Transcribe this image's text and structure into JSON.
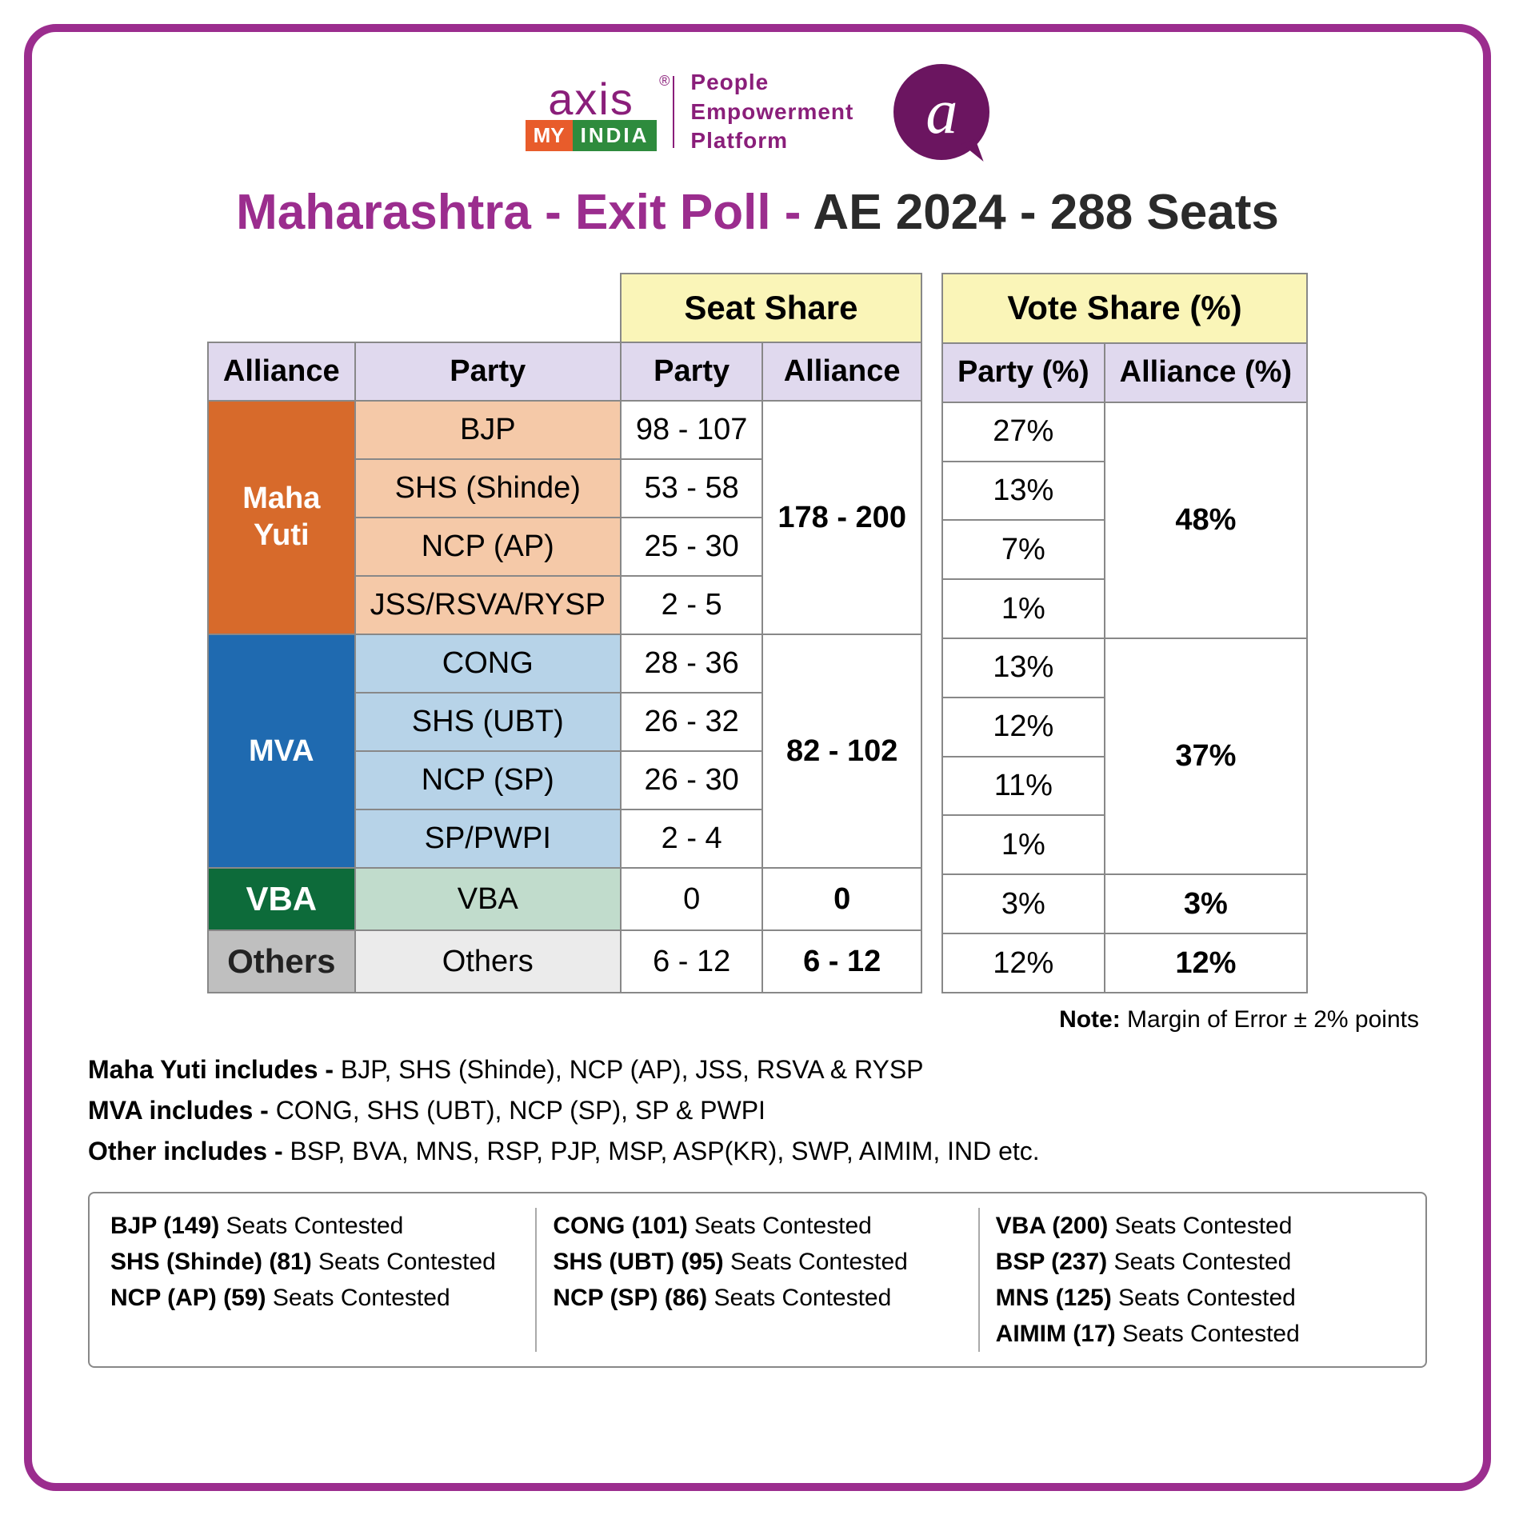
{
  "logo": {
    "axis": "axis",
    "reg": "®",
    "my": "MY",
    "india": "INDIA",
    "tagline1": "People",
    "tagline2": "Empowerment",
    "tagline3": "Platform",
    "bubble": "a"
  },
  "title": {
    "part1": "Maharashtra - Exit Poll - ",
    "part2": "AE 2024 - 288 Seats"
  },
  "headers": {
    "seat_share": "Seat Share",
    "vote_share": "Vote Share (%)",
    "alliance": "Alliance",
    "party": "Party",
    "party_seat": "Party",
    "alliance_seat": "Alliance",
    "party_pct": "Party (%)",
    "alliance_pct": "Alliance (%)"
  },
  "colors": {
    "border": "#9b2d8e",
    "title_accent": "#9b2d8e",
    "super_header_bg": "#faf5b8",
    "sub_header_bg": "#e0d9ee",
    "maha_yuti": "#d76a2b",
    "maha_yuti_party": "#f5c9a8",
    "mva": "#1f6ab0",
    "mva_party": "#b7d3e8",
    "vba": "#0d6b3a",
    "vba_party": "#c1dccc",
    "others": "#bfbfbf",
    "others_party": "#ebebeb",
    "cell_border": "#888888"
  },
  "alliances": [
    {
      "name": "Maha Yuti",
      "alliance_seat": "178 - 200",
      "alliance_vote": "48%",
      "parties": [
        {
          "name": "BJP",
          "seat": "98 - 107",
          "vote": "27%"
        },
        {
          "name": "SHS (Shinde)",
          "seat": "53 - 58",
          "vote": "13%"
        },
        {
          "name": "NCP (AP)",
          "seat": "25 - 30",
          "vote": "7%"
        },
        {
          "name": "JSS/RSVA/RYSP",
          "seat": "2 - 5",
          "vote": "1%"
        }
      ]
    },
    {
      "name": "MVA",
      "alliance_seat": "82 - 102",
      "alliance_vote": "37%",
      "parties": [
        {
          "name": "CONG",
          "seat": "28 - 36",
          "vote": "13%"
        },
        {
          "name": "SHS (UBT)",
          "seat": "26 - 32",
          "vote": "12%"
        },
        {
          "name": "NCP (SP)",
          "seat": "26 - 30",
          "vote": "11%"
        },
        {
          "name": "SP/PWPI",
          "seat": "2 - 4",
          "vote": "1%"
        }
      ]
    },
    {
      "name": "VBA",
      "alliance_seat": "0",
      "alliance_vote": "3%",
      "parties": [
        {
          "name": "VBA",
          "seat": "0",
          "vote": "3%"
        }
      ]
    },
    {
      "name": "Others",
      "alliance_seat": "6 - 12",
      "alliance_vote": "12%",
      "parties": [
        {
          "name": "Others",
          "seat": "6 - 12",
          "vote": "12%"
        }
      ]
    }
  ],
  "note": {
    "label": "Note:",
    "text": " Margin of Error ± 2% points"
  },
  "includes": [
    {
      "label": "Maha Yuti includes - ",
      "text": "BJP, SHS (Shinde), NCP (AP), JSS, RSVA & RYSP"
    },
    {
      "label": "MVA includes - ",
      "text": "CONG, SHS (UBT), NCP (SP), SP & PWPI"
    },
    {
      "label": "Other includes - ",
      "text": "BSP, BVA, MNS, RSP, PJP, MSP, ASP(KR), SWP, AIMIM, IND etc."
    }
  ],
  "contested": {
    "suffix": " Seats Contested",
    "cols": [
      [
        {
          "party": "BJP",
          "count": "(149)"
        },
        {
          "party": "SHS (Shinde)",
          "count": "(81)"
        },
        {
          "party": "NCP (AP)",
          "count": "(59)"
        }
      ],
      [
        {
          "party": "CONG",
          "count": "(101)"
        },
        {
          "party": "SHS (UBT)",
          "count": "(95)"
        },
        {
          "party": "NCP (SP)",
          "count": "(86)"
        }
      ],
      [
        {
          "party": "VBA",
          "count": "(200)"
        },
        {
          "party": "BSP",
          "count": "(237)"
        },
        {
          "party": "MNS",
          "count": "(125)"
        },
        {
          "party": "AIMIM",
          "count": "(17)"
        }
      ]
    ]
  }
}
